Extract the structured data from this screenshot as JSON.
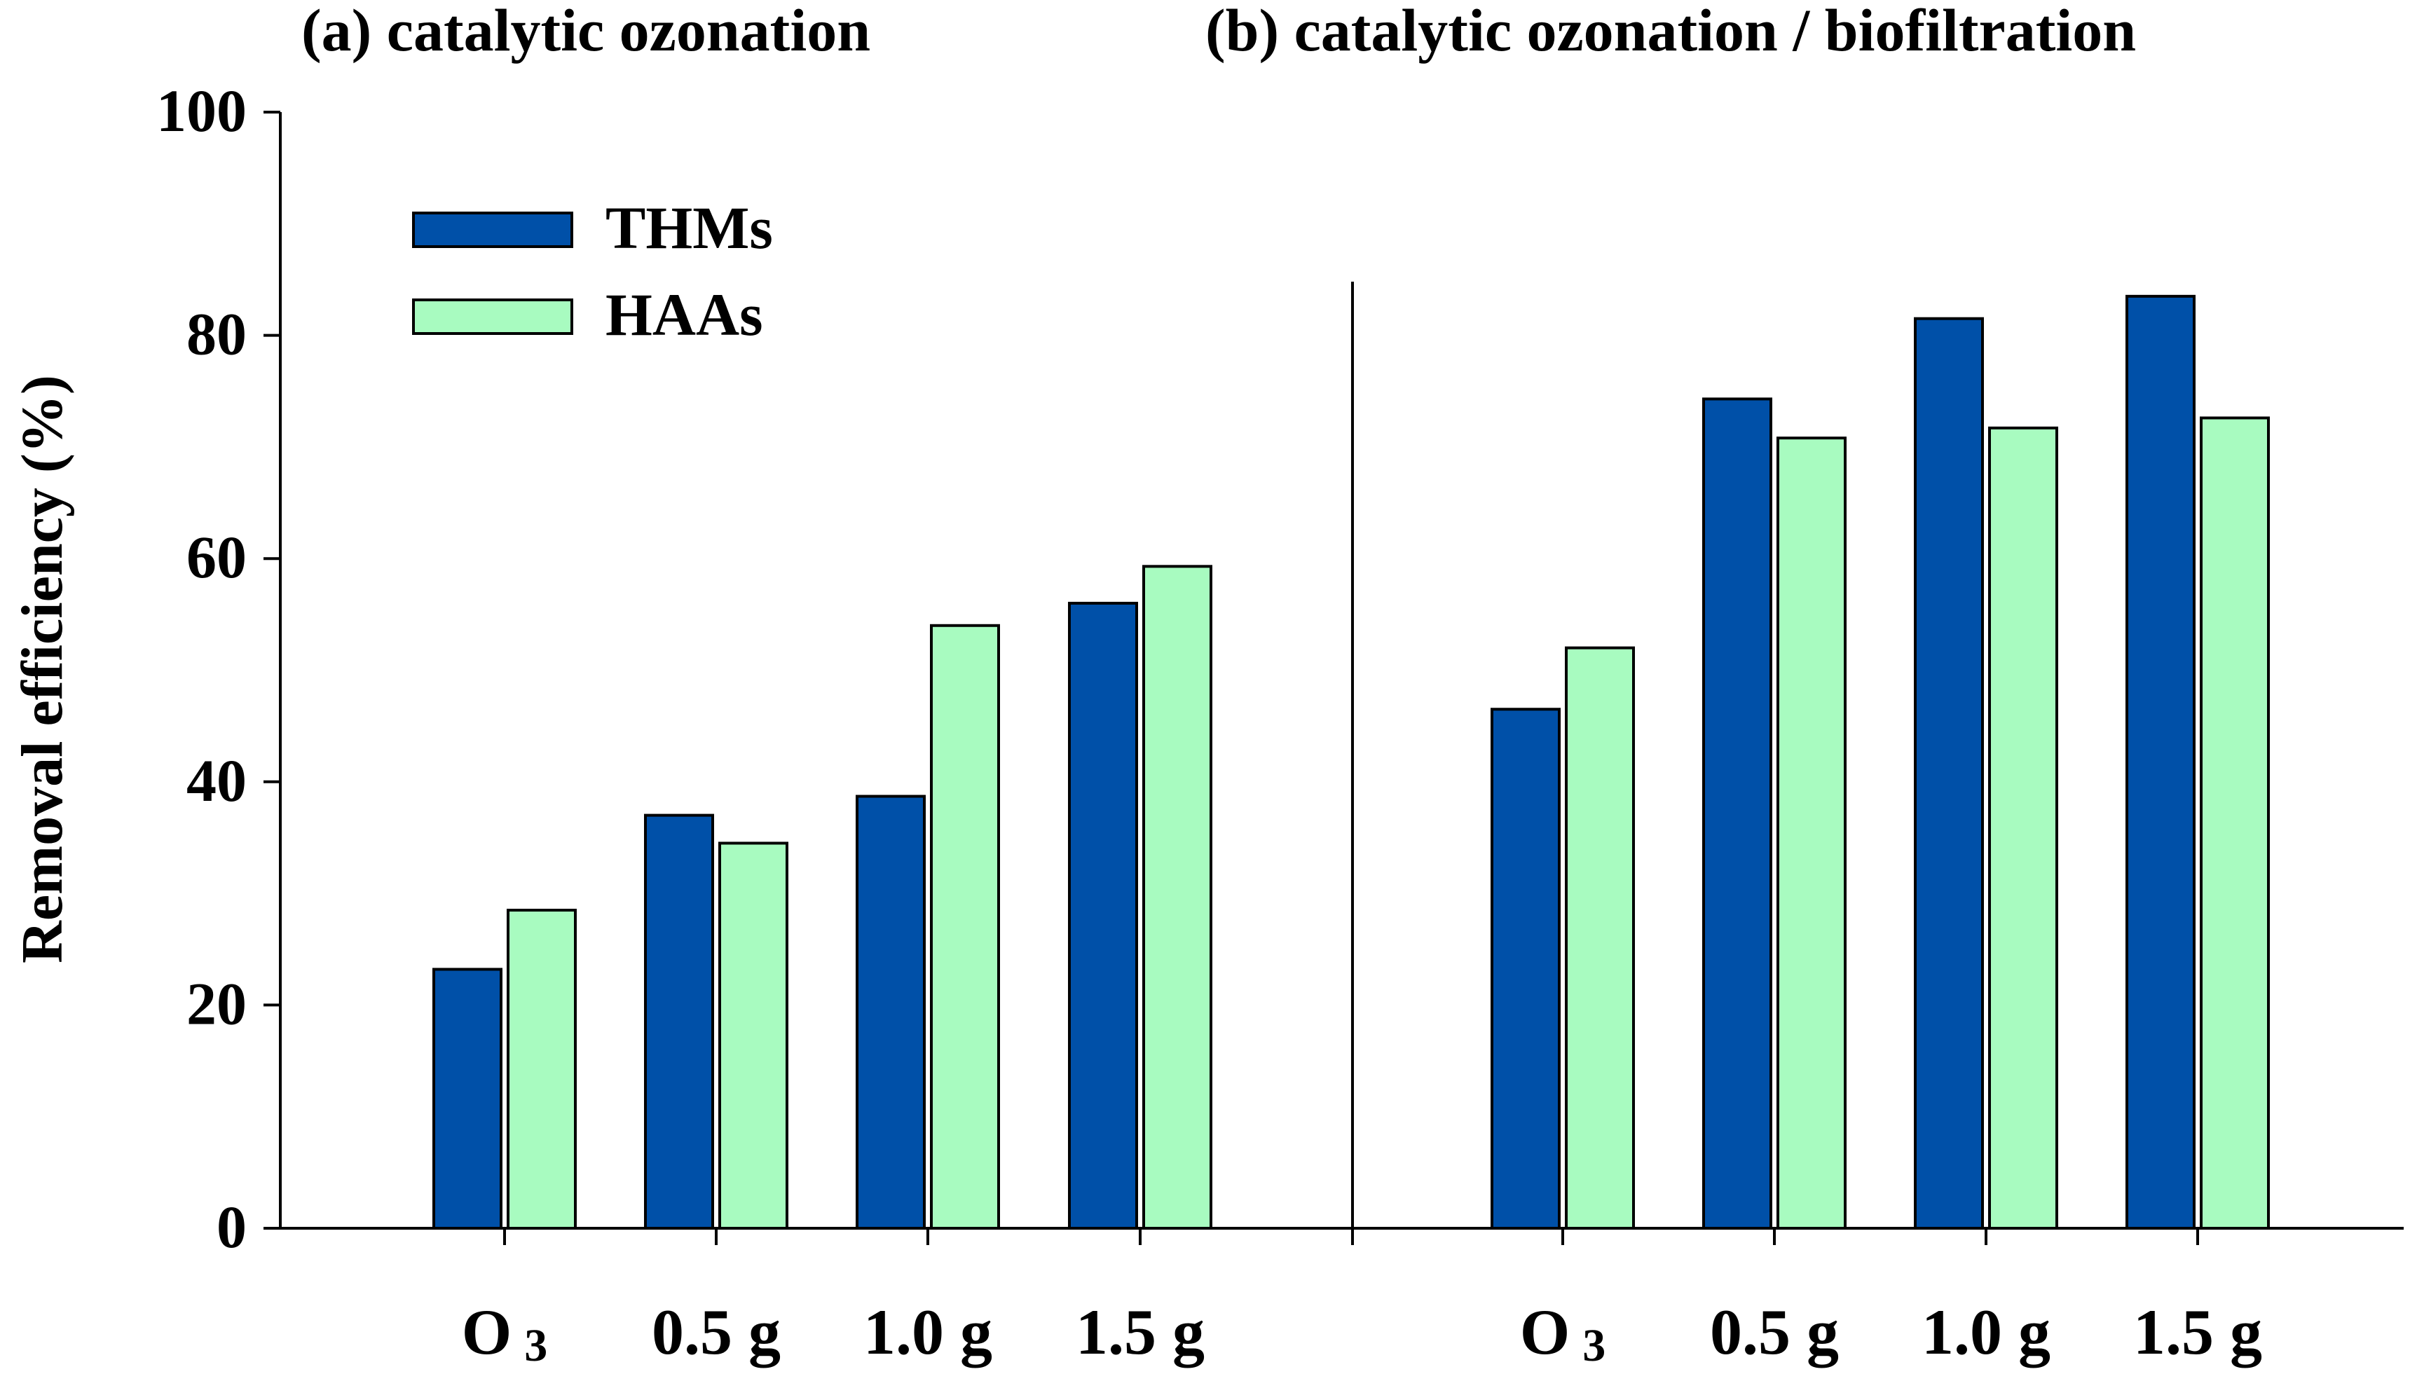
{
  "chart_data": {
    "type": "bar",
    "ylabel": "Removal efficiency (%)",
    "ylim": [
      0,
      100
    ],
    "yticks": [
      0,
      20,
      40,
      60,
      80,
      100
    ],
    "grid": false,
    "legend_position": "top-left",
    "series": [
      {
        "name": "THMs",
        "color": "#0050A8"
      },
      {
        "name": "HAAs",
        "color": "#A8FBC0"
      }
    ],
    "panels": [
      {
        "title": "(a) catalytic ozonation",
        "categories": [
          {
            "main": "O",
            "sub": "3"
          },
          {
            "main": "0.5 g",
            "sub": ""
          },
          {
            "main": "1.0 g",
            "sub": ""
          },
          {
            "main": "1.5 g",
            "sub": ""
          }
        ],
        "values": {
          "THMs": [
            23.2,
            37.0,
            38.7,
            56.0
          ],
          "HAAs": [
            28.5,
            34.5,
            54.0,
            59.3
          ]
        }
      },
      {
        "title": "(b) catalytic ozonation / biofiltration",
        "categories": [
          {
            "main": "O",
            "sub": "3"
          },
          {
            "main": "0.5 g",
            "sub": ""
          },
          {
            "main": "1.0 g",
            "sub": ""
          },
          {
            "main": "1.5 g",
            "sub": ""
          }
        ],
        "values": {
          "THMs": [
            46.5,
            74.3,
            81.5,
            83.5
          ],
          "HAAs": [
            52.0,
            70.8,
            71.7,
            72.6
          ]
        }
      }
    ]
  }
}
